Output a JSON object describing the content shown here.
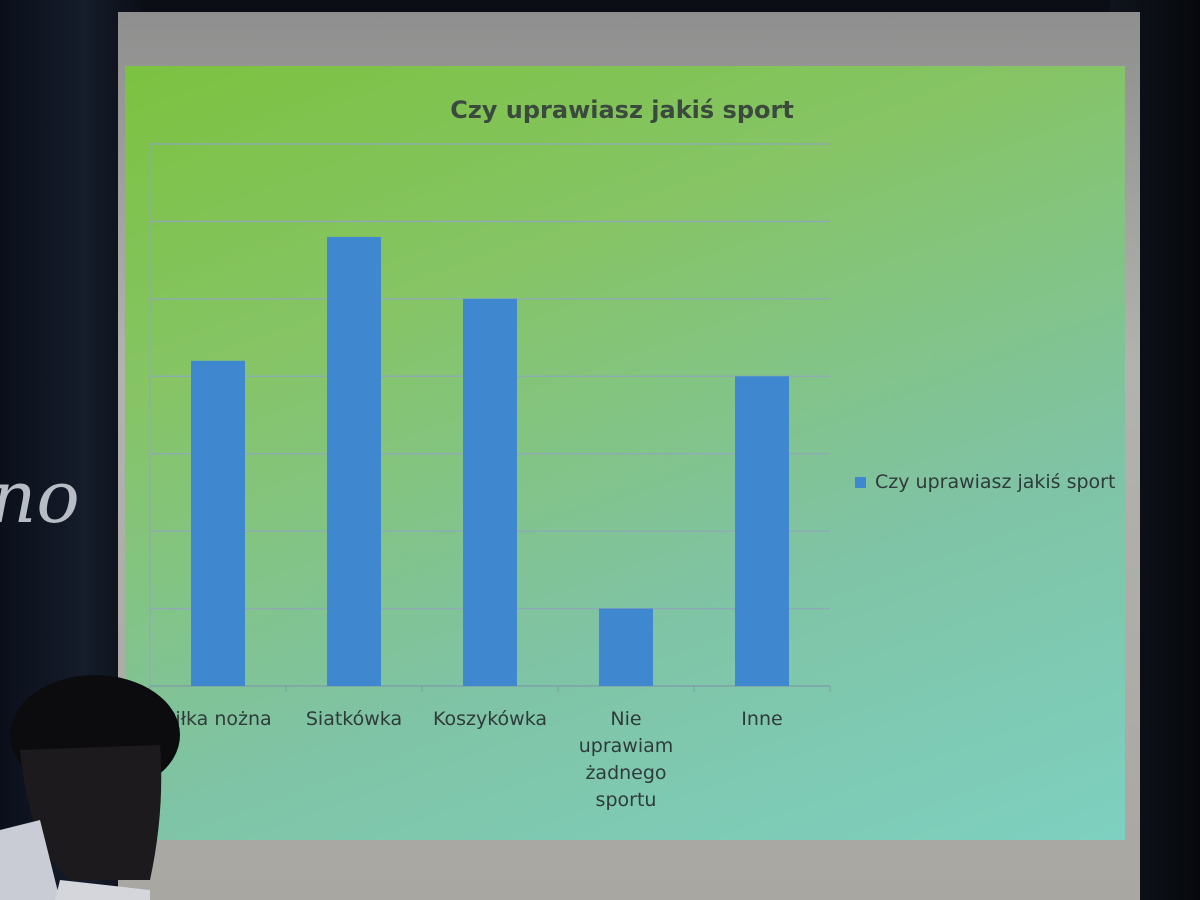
{
  "chart_data": {
    "type": "bar",
    "title": "Czy uprawiasz jakiś sport",
    "categories": [
      "Piłka nożna",
      "Siatkówka",
      "Koszykówka",
      "Nie uprawiam żadnego sportu",
      "Inne"
    ],
    "category_lines": [
      [
        "Piłka nożna"
      ],
      [
        "Siatkówka"
      ],
      [
        "Koszykówka"
      ],
      [
        "Nie",
        "uprawiam",
        "żadnego",
        "sportu"
      ],
      [
        "Inne"
      ]
    ],
    "series": [
      {
        "name": "Czy uprawiasz jakiś sport",
        "values": [
          4.2,
          5.8,
          5.0,
          1.0,
          4.0
        ],
        "color": "#3f87cf"
      }
    ],
    "ylim": [
      0,
      7
    ],
    "y_tick_labels_shown": false,
    "grid": true,
    "legend": "right",
    "xlabel": "",
    "ylabel": ""
  },
  "background": {
    "wall_text": "no"
  }
}
